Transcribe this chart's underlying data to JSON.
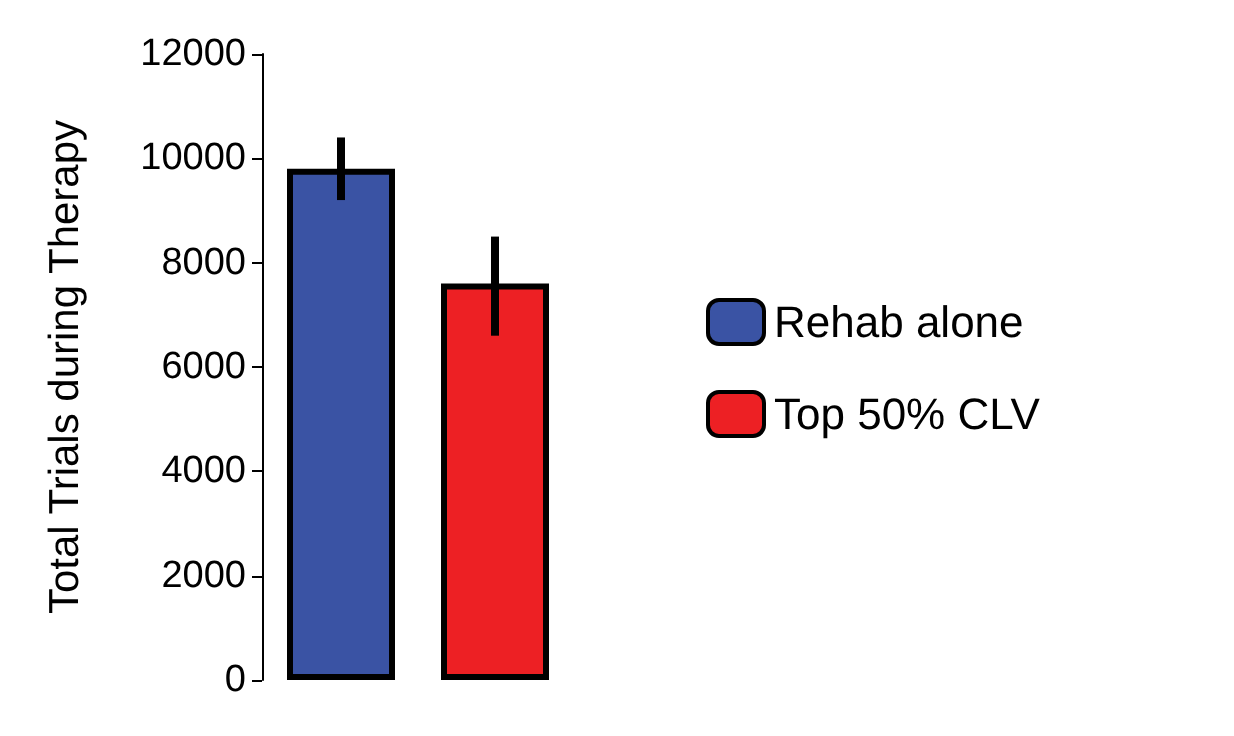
{
  "chart_data": {
    "type": "bar",
    "ylabel": "Total Trials during Therapy",
    "categories": [
      null
    ],
    "series": [
      {
        "name": "Rehab alone",
        "color": "#3a53a4",
        "values": [
          9800
        ],
        "errors": [
          [
            9200,
            10400
          ]
        ]
      },
      {
        "name": "Top 50% CLV",
        "color": "#ed2024",
        "values": [
          7600
        ],
        "errors": [
          [
            6600,
            8500
          ]
        ]
      }
    ],
    "ylim": [
      0,
      12000
    ],
    "yticks": [
      0,
      2000,
      4000,
      6000,
      8000,
      10000,
      12000
    ],
    "legend": "right"
  }
}
